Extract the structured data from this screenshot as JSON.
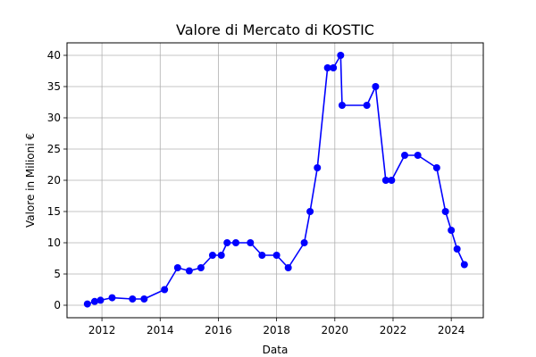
{
  "chart_data": {
    "type": "line",
    "title": "Valore di Mercato di KOSTIC",
    "xlabel": "Data",
    "ylabel": "Valore in Milioni €",
    "xlim": [
      2010.8,
      2025.1
    ],
    "ylim": [
      -2,
      42
    ],
    "xticks": [
      2012,
      2014,
      2016,
      2018,
      2020,
      2022,
      2024
    ],
    "yticks": [
      0,
      5,
      10,
      15,
      20,
      25,
      30,
      35,
      40
    ],
    "grid": true,
    "legend": "none",
    "series": [
      {
        "color": "#0000ff",
        "marker": "circle",
        "x": [
          2011.5,
          2011.75,
          2011.95,
          2012.35,
          2013.05,
          2013.45,
          2014.15,
          2014.6,
          2015.0,
          2015.4,
          2015.8,
          2016.1,
          2016.3,
          2016.6,
          2017.1,
          2017.5,
          2018.0,
          2018.4,
          2018.95,
          2019.15,
          2019.4,
          2019.75,
          2019.95,
          2020.2,
          2020.25,
          2021.1,
          2021.4,
          2021.75,
          2021.95,
          2022.4,
          2022.85,
          2023.5,
          2023.8,
          2024.0,
          2024.2,
          2024.45
        ],
        "y": [
          0.2,
          0.6,
          0.8,
          1.2,
          1.0,
          1.0,
          2.5,
          6.0,
          5.5,
          6.0,
          8.0,
          8.0,
          10.0,
          10.0,
          10.0,
          8.0,
          8.0,
          6.0,
          10.0,
          15.0,
          22.0,
          38.0,
          38.0,
          40.0,
          32.0,
          32.0,
          35.0,
          20.0,
          20.0,
          24.0,
          24.0,
          22.0,
          15.0,
          12.0,
          9.0,
          6.5
        ]
      }
    ]
  }
}
